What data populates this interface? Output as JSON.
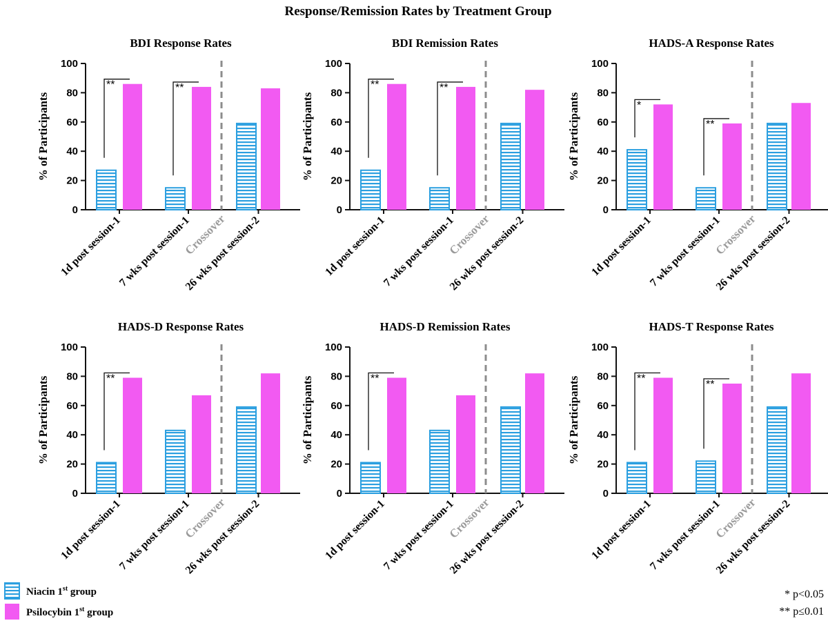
{
  "title": "Response/Remission Rates by Treatment Group",
  "legend": {
    "niacin": {
      "label": "Niacin 1",
      "sup": "st",
      "suffix": " group"
    },
    "psilocybin": {
      "label": "Psilocybin 1",
      "sup": "st",
      "suffix": " group"
    }
  },
  "significance_notes": [
    "* p<0.05",
    "** p≤0.01"
  ],
  "colors": {
    "niacin_stroke": "#2b9fe0",
    "niacin_fill": "#ffffff",
    "psilocybin": "#f25af2",
    "crossover": "#8c8c8c",
    "axis": "#111111"
  },
  "chart_data": [
    {
      "type": "bar",
      "title": "BDI Response Rates",
      "ylabel": "% of Participants",
      "ylim": [
        0,
        100
      ],
      "yticks": [
        "0",
        "20",
        "40",
        "60",
        "80",
        "100"
      ],
      "categories": [
        "1d post session-1",
        "7 wks post session-1",
        "26 wks post session-2"
      ],
      "crossover_label": "Crossover",
      "series": [
        {
          "name": "Niacin 1st group",
          "values": [
            27,
            15,
            59
          ]
        },
        {
          "name": "Psilocybin 1st group",
          "values": [
            86,
            84,
            83
          ]
        }
      ],
      "significance": [
        "**",
        "**",
        ""
      ]
    },
    {
      "type": "bar",
      "title": "BDI Remission Rates",
      "ylabel": "% of Participants",
      "ylim": [
        0,
        100
      ],
      "yticks": [
        "0",
        "20",
        "40",
        "60",
        "80",
        "100"
      ],
      "categories": [
        "1d post session-1",
        "7 wks post session-1",
        "26 wks post session-2"
      ],
      "crossover_label": "Crossover",
      "series": [
        {
          "name": "Niacin 1st group",
          "values": [
            27,
            15,
            59
          ]
        },
        {
          "name": "Psilocybin 1st group",
          "values": [
            86,
            84,
            82
          ]
        }
      ],
      "significance": [
        "**",
        "**",
        ""
      ]
    },
    {
      "type": "bar",
      "title": "HADS-A Response Rates",
      "ylabel": "% of Participants",
      "ylim": [
        0,
        100
      ],
      "yticks": [
        "0",
        "20",
        "40",
        "60",
        "80",
        "100"
      ],
      "categories": [
        "1d post session-1",
        "7 wks post session-1",
        "26 wks post session-2"
      ],
      "crossover_label": "Crossover",
      "series": [
        {
          "name": "Niacin 1st group",
          "values": [
            41,
            15,
            59
          ]
        },
        {
          "name": "Psilocybin 1st group",
          "values": [
            72,
            59,
            73
          ]
        }
      ],
      "significance": [
        "*",
        "**",
        ""
      ]
    },
    {
      "type": "bar",
      "title": "HADS-D Response Rates",
      "ylabel": "% of Participants",
      "ylim": [
        0,
        100
      ],
      "yticks": [
        "0",
        "20",
        "40",
        "60",
        "80",
        "100"
      ],
      "categories": [
        "1d post session-1",
        "7 wks post session-1",
        "26 wks post session-2"
      ],
      "crossover_label": "Crossover",
      "series": [
        {
          "name": "Niacin 1st group",
          "values": [
            21,
            43,
            59
          ]
        },
        {
          "name": "Psilocybin 1st group",
          "values": [
            79,
            67,
            82
          ]
        }
      ],
      "significance": [
        "**",
        "",
        ""
      ]
    },
    {
      "type": "bar",
      "title": "HADS-D Remission Rates",
      "ylabel": "% of Participants",
      "ylim": [
        0,
        100
      ],
      "yticks": [
        "0",
        "20",
        "40",
        "60",
        "80",
        "100"
      ],
      "categories": [
        "1d post session-1",
        "7 wks post session-1",
        "26 wks post session-2"
      ],
      "crossover_label": "Crossover",
      "series": [
        {
          "name": "Niacin 1st group",
          "values": [
            21,
            43,
            59
          ]
        },
        {
          "name": "Psilocybin 1st group",
          "values": [
            79,
            67,
            82
          ]
        }
      ],
      "significance": [
        "**",
        "",
        ""
      ]
    },
    {
      "type": "bar",
      "title": "HADS-T Response Rates",
      "ylabel": "% of Participants",
      "ylim": [
        0,
        100
      ],
      "yticks": [
        "0",
        "20",
        "40",
        "60",
        "80",
        "100"
      ],
      "categories": [
        "1d post session-1",
        "7 wks post session-1",
        "26 wks post session-2"
      ],
      "crossover_label": "Crossover",
      "series": [
        {
          "name": "Niacin 1st group",
          "values": [
            21,
            22,
            59
          ]
        },
        {
          "name": "Psilocybin 1st group",
          "values": [
            79,
            75,
            82
          ]
        }
      ],
      "significance": [
        "**",
        "**",
        ""
      ]
    }
  ]
}
